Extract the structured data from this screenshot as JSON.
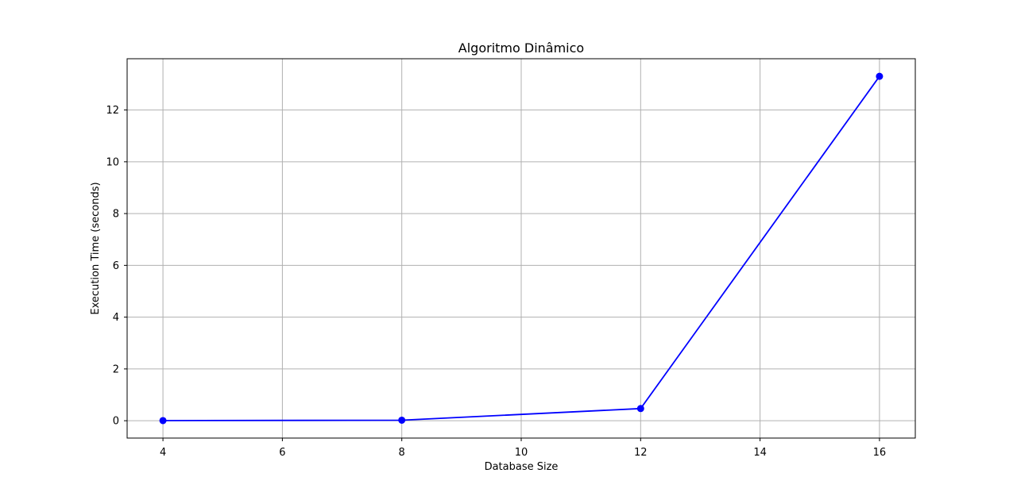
{
  "chart_data": {
    "type": "line",
    "title": "Algoritmo Dinâmico",
    "xlabel": "Database Size",
    "ylabel": "Execution Time (seconds)",
    "x": [
      4,
      8,
      12,
      16
    ],
    "series": [
      {
        "values": [
          0.005,
          0.02,
          0.47,
          13.3
        ],
        "color": "#0000ff",
        "marker": "circle"
      }
    ],
    "xlim": [
      3.4,
      16.6
    ],
    "ylim": [
      -0.67,
      13.98
    ],
    "xticks": [
      4,
      6,
      8,
      10,
      12,
      14,
      16
    ],
    "yticks": [
      0,
      2,
      4,
      6,
      8,
      10,
      12
    ],
    "grid": true,
    "legend": "none"
  }
}
